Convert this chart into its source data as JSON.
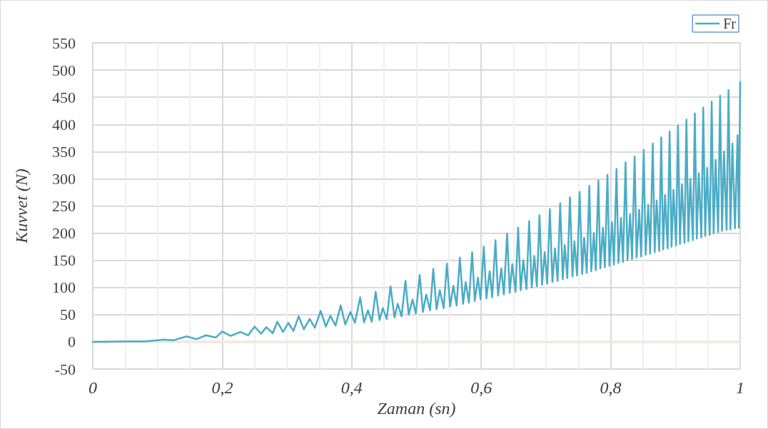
{
  "chart_data": {
    "type": "line",
    "xlabel": "Zaman (sn)",
    "ylabel": "Kuvvet (N)",
    "xlim": [
      0,
      1
    ],
    "xticks": [
      0,
      {
        "value": 0.2,
        "label": "0,2"
      },
      {
        "value": 0.4,
        "label": "0,4"
      },
      {
        "value": 0.6,
        "label": "0,6"
      },
      {
        "value": 0.8,
        "label": "0,8"
      },
      1
    ],
    "ylim": [
      -50,
      550
    ],
    "yticks": [
      -50,
      0,
      50,
      100,
      150,
      200,
      250,
      300,
      350,
      400,
      450,
      500,
      550
    ],
    "grid": true,
    "legend": "top right",
    "marker": "none",
    "line_style": "solid",
    "series": [
      {
        "color": "#eeece1",
        "x": [
          0,
          1
        ],
        "values": [
          0,
          0
        ]
      },
      {
        "name": "Fr",
        "color": "#4bacc6",
        "x": [
          0,
          0.05,
          0.08,
          0.1,
          0.11,
          0.125,
          0.145,
          0.16,
          0.175,
          0.19,
          0.2,
          0.213,
          0.228,
          0.24,
          0.25,
          0.26,
          0.268,
          0.278,
          0.285,
          0.294,
          0.302,
          0.31,
          0.318,
          0.326,
          0.335,
          0.343,
          0.352,
          0.36,
          0.367,
          0.375,
          0.383,
          0.39,
          0.398,
          0.405,
          0.413,
          0.419,
          0.425,
          0.431,
          0.437,
          0.443,
          0.448,
          0.454,
          0.46,
          0.466,
          0.471,
          0.477,
          0.483,
          0.488,
          0.494,
          0.499,
          0.505,
          0.51,
          0.515,
          0.521,
          0.526,
          0.531,
          0.536,
          0.542,
          0.547,
          0.552,
          0.557,
          0.562,
          0.567,
          0.572,
          0.576,
          0.581,
          0.586,
          0.59,
          0.595,
          0.599,
          0.604,
          0.608,
          0.613,
          0.617,
          0.622,
          0.626,
          0.631,
          0.635,
          0.64,
          0.644,
          0.648,
          0.653,
          0.657,
          0.661,
          0.665,
          0.67,
          0.674,
          0.678,
          0.682,
          0.686,
          0.69,
          0.694,
          0.698,
          0.702,
          0.706,
          0.71,
          0.714,
          0.718,
          0.722,
          0.726,
          0.729,
          0.733,
          0.737,
          0.741,
          0.744,
          0.748,
          0.752,
          0.756,
          0.759,
          0.763,
          0.767,
          0.77,
          0.774,
          0.777,
          0.781,
          0.784,
          0.788,
          0.791,
          0.795,
          0.798,
          0.802,
          0.805,
          0.809,
          0.812,
          0.816,
          0.819,
          0.823,
          0.826,
          0.83,
          0.833,
          0.837,
          0.84,
          0.844,
          0.847,
          0.851,
          0.854,
          0.858,
          0.861,
          0.865,
          0.868,
          0.871,
          0.875,
          0.878,
          0.881,
          0.884,
          0.888,
          0.891,
          0.894,
          0.897,
          0.901,
          0.904,
          0.907,
          0.91,
          0.914,
          0.917,
          0.92,
          0.923,
          0.927,
          0.93,
          0.933,
          0.936,
          0.94,
          0.943,
          0.946,
          0.949,
          0.953,
          0.956,
          0.959,
          0.962,
          0.966,
          0.969,
          0.972,
          0.975,
          0.979,
          0.982,
          0.985,
          0.988,
          0.992,
          0.996,
          0.998,
          1
        ],
        "values": [
          0,
          1,
          1,
          3,
          4,
          3,
          10,
          5,
          12,
          8,
          19,
          11,
          18,
          12,
          28,
          15,
          27,
          16,
          37,
          18,
          35,
          20,
          47,
          23,
          42,
          26,
          57,
          28,
          48,
          30,
          67,
          32,
          55,
          35,
          82,
          36,
          58,
          37,
          92,
          40,
          62,
          42,
          102,
          45,
          70,
          47,
          112,
          50,
          78,
          52,
          123,
          55,
          87,
          58,
          134,
          60,
          95,
          62,
          144,
          65,
          103,
          67,
          155,
          70,
          110,
          72,
          165,
          75,
          118,
          78,
          175,
          80,
          130,
          82,
          187,
          85,
          135,
          87,
          199,
          90,
          143,
          92,
          210,
          95,
          150,
          97,
          222,
          100,
          158,
          102,
          233,
          105,
          165,
          107,
          244,
          110,
          172,
          112,
          255,
          115,
          178,
          117,
          266,
          120,
          185,
          122,
          276,
          125,
          192,
          127,
          287,
          130,
          200,
          132,
          297,
          135,
          210,
          137,
          307,
          140,
          220,
          142,
          318,
          145,
          228,
          147,
          330,
          150,
          235,
          152,
          341,
          155,
          243,
          157,
          353,
          160,
          252,
          162,
          365,
          165,
          260,
          167,
          376,
          170,
          270,
          172,
          387,
          175,
          280,
          177,
          398,
          180,
          290,
          182,
          409,
          185,
          300,
          187,
          420,
          190,
          310,
          192,
          431,
          195,
          320,
          197,
          442,
          200,
          335,
          202,
          453,
          204,
          350,
          206,
          463,
          207,
          365,
          209,
          380,
          210,
          478
        ]
      }
    ]
  }
}
